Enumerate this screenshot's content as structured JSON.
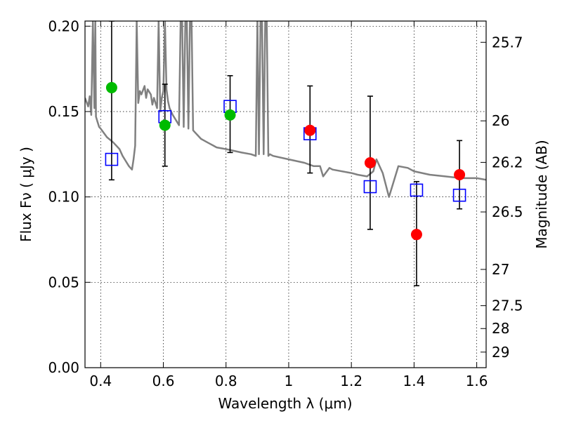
{
  "chart_data": {
    "type": "scatter",
    "xlabel": "Wavelength  λ (μm)",
    "ylabel": "Flux  Fν  ( μJy )",
    "y2label": "Magnitude (AB)",
    "xlim": [
      0.35,
      1.63
    ],
    "ylim": [
      0.0,
      0.203
    ],
    "grid": true,
    "x_ticks": [
      0.4,
      0.6,
      0.8,
      1.0,
      1.2,
      1.4,
      1.6
    ],
    "x_tick_labels": [
      "0.4",
      "0.6",
      "0.8",
      "1",
      "1.2",
      "1.4",
      "1.6"
    ],
    "y_ticks": [
      0.0,
      0.05,
      0.1,
      0.15,
      0.2
    ],
    "y_tick_labels": [
      "0.00",
      "0.05",
      "0.10",
      "0.15",
      "0.20"
    ],
    "y2_ticks": [
      25.7,
      26,
      26.2,
      26.5,
      27,
      27.5,
      28,
      29
    ],
    "y2_tick_labels": [
      "25.7",
      "26",
      "26.2",
      "26.5",
      "27",
      "27.5",
      "28",
      "29"
    ],
    "series": [
      {
        "color": "#808080",
        "kind": "line",
        "x": [
          0.35,
          0.36,
          0.365,
          0.37,
          0.375,
          0.38,
          0.383,
          0.385,
          0.39,
          0.395,
          0.4,
          0.42,
          0.44,
          0.46,
          0.47,
          0.48,
          0.49,
          0.5,
          0.505,
          0.51,
          0.515,
          0.52,
          0.525,
          0.53,
          0.54,
          0.545,
          0.55,
          0.56,
          0.565,
          0.57,
          0.58,
          0.585,
          0.59,
          0.595,
          0.6,
          0.605,
          0.61,
          0.615,
          0.62,
          0.63,
          0.64,
          0.65,
          0.655,
          0.66,
          0.665,
          0.67,
          0.675,
          0.68,
          0.685,
          0.69,
          0.695,
          0.7,
          0.71,
          0.72,
          0.73,
          0.74,
          0.75,
          0.76,
          0.77,
          0.8,
          0.85,
          0.88,
          0.895,
          0.9,
          0.905,
          0.91,
          0.915,
          0.92,
          0.925,
          0.93,
          0.935,
          0.94,
          0.95,
          1.0,
          1.05,
          1.08,
          1.1,
          1.11,
          1.13,
          1.14,
          1.2,
          1.22,
          1.25,
          1.27,
          1.28,
          1.3,
          1.32,
          1.35,
          1.38,
          1.4,
          1.45,
          1.5,
          1.55,
          1.6,
          1.63
        ],
        "y": [
          0.158,
          0.153,
          0.159,
          0.148,
          0.203,
          0.152,
          0.203,
          0.147,
          0.144,
          0.141,
          0.14,
          0.135,
          0.132,
          0.128,
          0.124,
          0.121,
          0.118,
          0.116,
          0.122,
          0.13,
          0.203,
          0.155,
          0.162,
          0.16,
          0.165,
          0.158,
          0.163,
          0.16,
          0.154,
          0.158,
          0.152,
          0.203,
          0.15,
          0.158,
          0.162,
          0.203,
          0.163,
          0.156,
          0.152,
          0.148,
          0.145,
          0.142,
          0.203,
          0.203,
          0.141,
          0.203,
          0.203,
          0.14,
          0.203,
          0.203,
          0.139,
          0.138,
          0.136,
          0.134,
          0.133,
          0.132,
          0.131,
          0.13,
          0.129,
          0.128,
          0.126,
          0.125,
          0.124,
          0.203,
          0.125,
          0.203,
          0.203,
          0.125,
          0.203,
          0.203,
          0.124,
          0.125,
          0.124,
          0.122,
          0.12,
          0.118,
          0.118,
          0.112,
          0.117,
          0.116,
          0.114,
          0.113,
          0.112,
          0.115,
          0.122,
          0.114,
          0.1,
          0.118,
          0.117,
          0.115,
          0.113,
          0.112,
          0.111,
          0.111,
          0.11
        ]
      },
      {
        "color": "#00bb00",
        "kind": "points",
        "x": [
          0.435,
          0.605,
          0.813
        ],
        "y": [
          0.164,
          0.142,
          0.148
        ]
      },
      {
        "color": "#ff0000",
        "kind": "points",
        "x": [
          1.068,
          1.26,
          1.408,
          1.545
        ],
        "y": [
          0.139,
          0.12,
          0.078,
          0.113
        ]
      },
      {
        "color": "#0000ff",
        "kind": "open-squares",
        "x": [
          0.435,
          0.605,
          0.813,
          1.068,
          1.26,
          1.408,
          1.545
        ],
        "y": [
          0.122,
          0.147,
          0.153,
          0.137,
          0.106,
          0.104,
          0.101
        ]
      }
    ],
    "error_bars": {
      "color": "#000000",
      "x": [
        0.435,
        0.605,
        0.813,
        1.068,
        1.26,
        1.408,
        1.545
      ],
      "y_low": [
        0.11,
        0.118,
        0.126,
        0.114,
        0.081,
        0.048,
        0.093
      ],
      "y_high": [
        0.203,
        0.166,
        0.171,
        0.165,
        0.159,
        0.109,
        0.133
      ]
    }
  }
}
